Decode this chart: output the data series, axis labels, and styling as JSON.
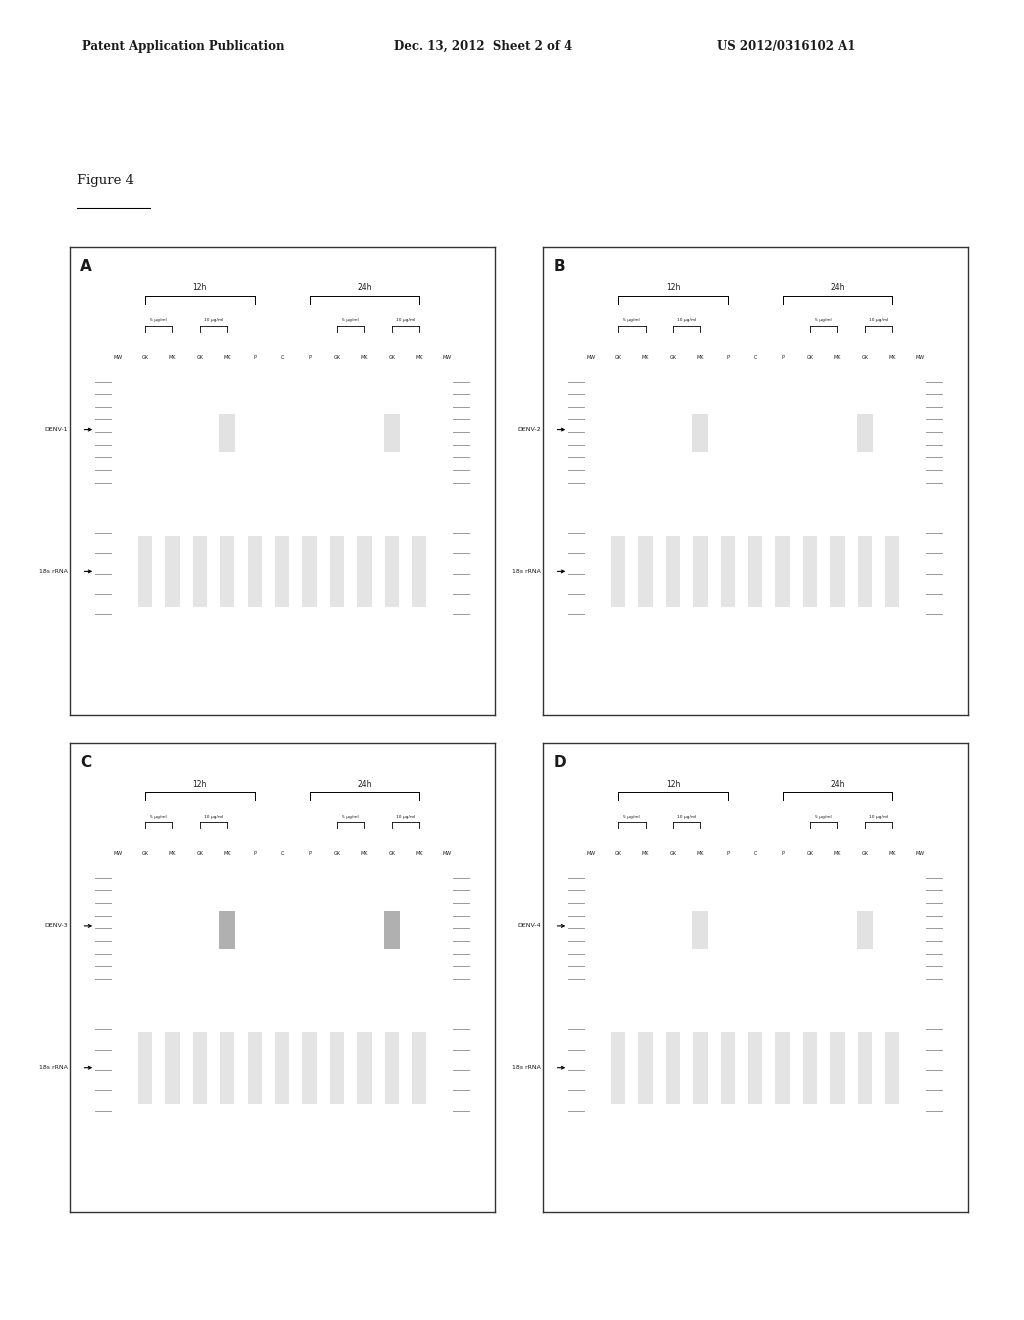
{
  "header_left": "Patent Application Publication",
  "header_center": "Dec. 13, 2012  Sheet 2 of 4",
  "header_right": "US 2012/0316102 A1",
  "figure_label": "Figure 4",
  "panel_labels": [
    "A",
    "B",
    "C",
    "D"
  ],
  "panel_denv_labels": [
    "DENV-1",
    "DENV-2",
    "DENV-3",
    "DENV-4"
  ],
  "time_labels": [
    "12h",
    "24h"
  ],
  "conc_labels": [
    "5 μg/ml",
    "10 μg/ml"
  ],
  "lane_labels": [
    "MW",
    "GK",
    "MK",
    "GK",
    "MK",
    "P",
    "C",
    "P",
    "GK",
    "MK",
    "GK",
    "MK",
    "MW"
  ],
  "rrna_label": "18s rRNA",
  "bg_color": "#ffffff",
  "gel_bg_upper": "#585858",
  "gel_bg_lower": "#464646",
  "border_color": "#333333",
  "text_color": "#1a1a1a",
  "band_bright": "#e0e0e0",
  "band_dim": "#aaaaaa",
  "ladder_color": "#999999"
}
